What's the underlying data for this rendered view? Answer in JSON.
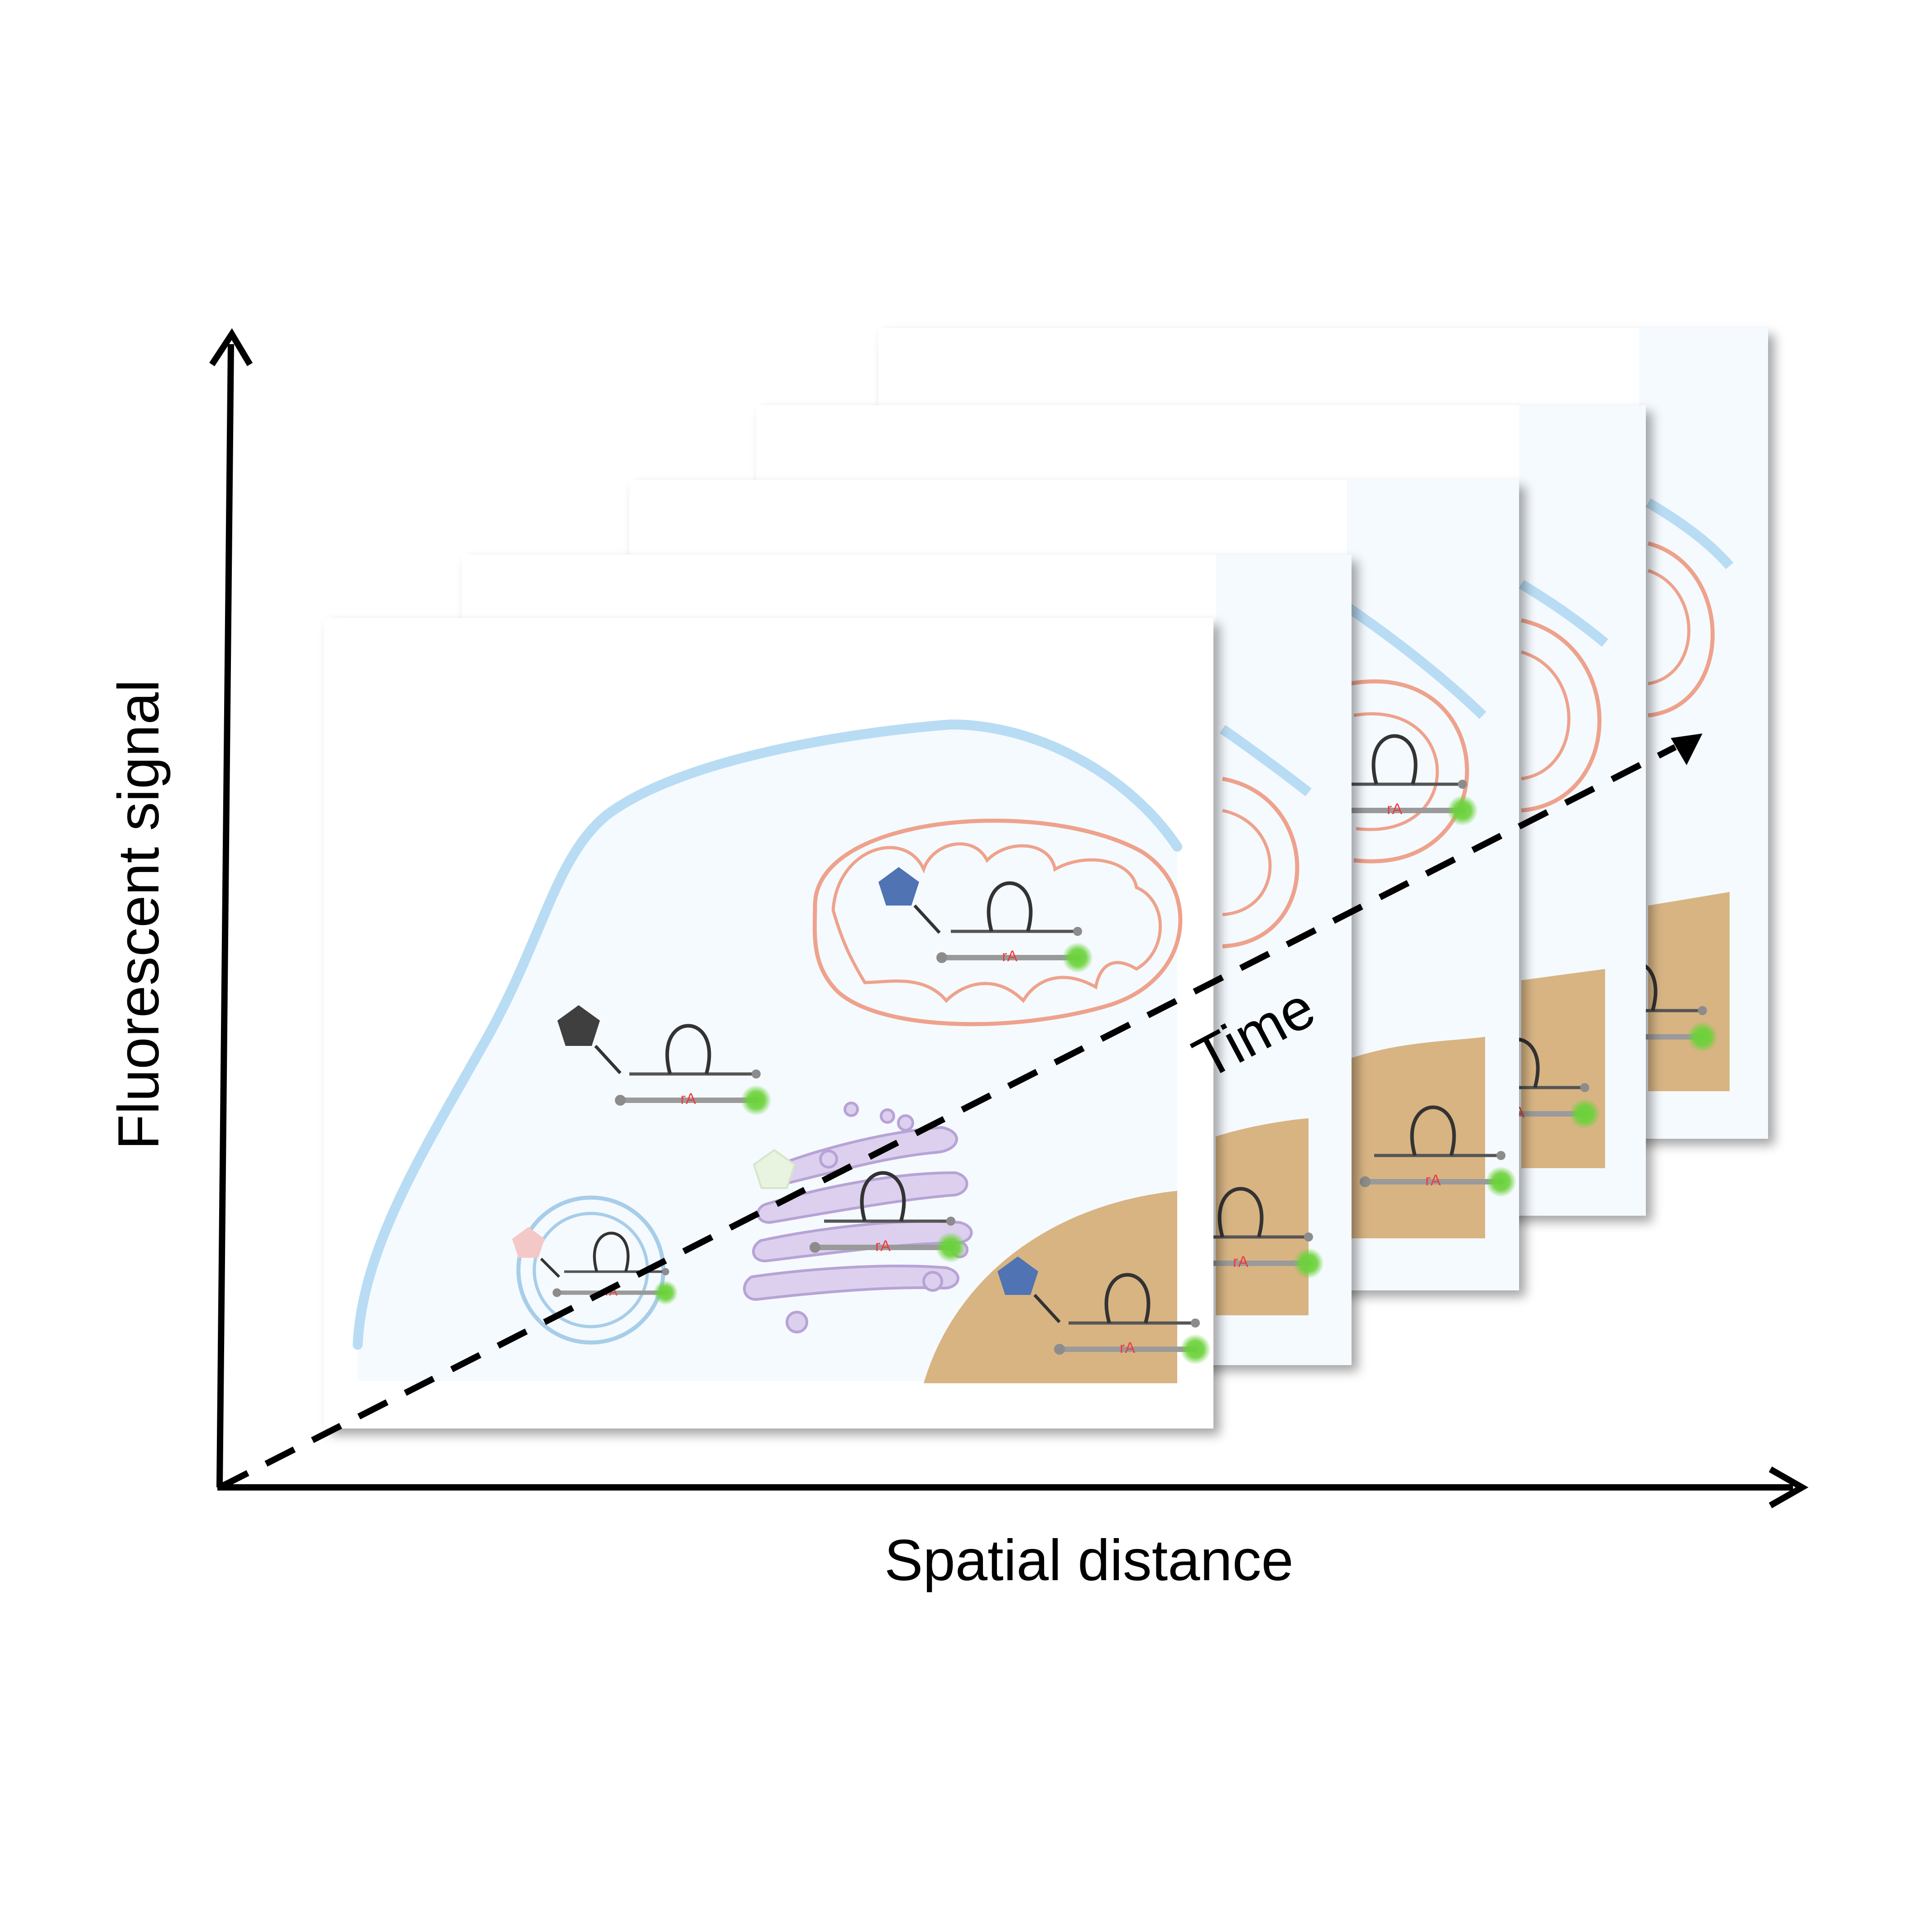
{
  "axes": {
    "y_label": "Fluorescent signal",
    "x_label": "Spatial distance",
    "time_label": "Time"
  },
  "probe": {
    "cleavage_site_label": "rA"
  },
  "frames": {
    "count": 5
  },
  "colors": {
    "cell_membrane": "#b8dcf3",
    "cytoplasm": "#f5faff",
    "mitochondrion": "#eea28c",
    "nucleus": "#d8b483",
    "golgi": "#c7b5dd",
    "vesicle": "#a7cde9",
    "fluorophore": "#6bd23a",
    "cleavage_site": "#f03a3a",
    "quencher": "#8c8c8c",
    "target_black": "#3f3f3f",
    "target_blue": "#4f73b3",
    "target_pink": "#f5c8c8",
    "target_pale_green": "#e8f3e0"
  },
  "icons": [
    "pentagon-target",
    "hairpin-probe",
    "mitochondrion",
    "golgi-apparatus",
    "vesicle",
    "nucleus"
  ]
}
